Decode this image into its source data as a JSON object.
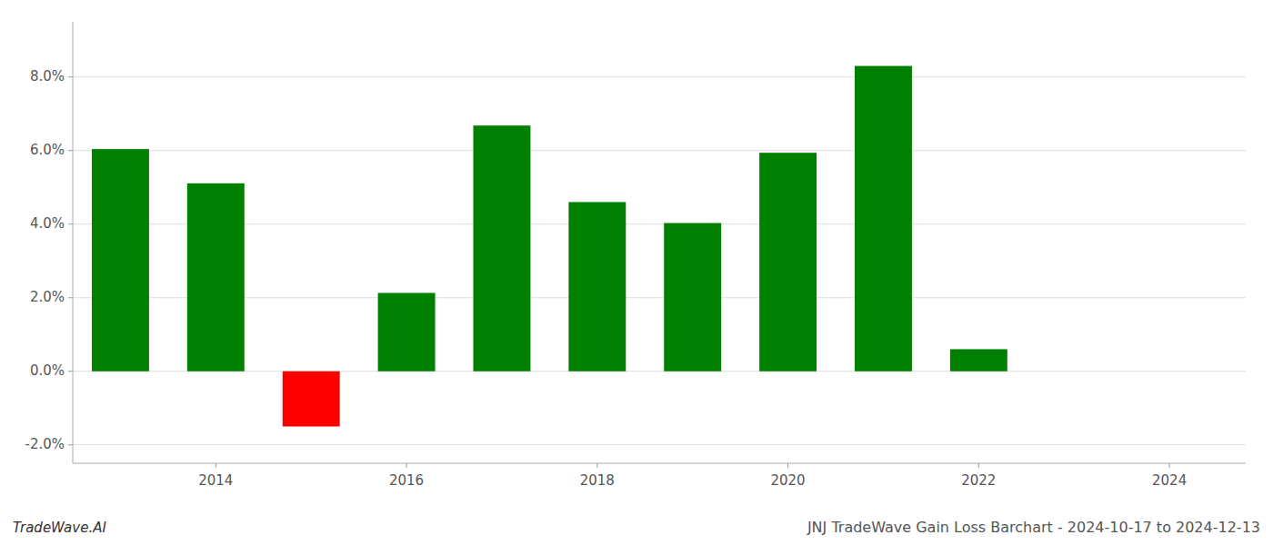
{
  "chart_data": {
    "type": "bar",
    "title": "JNJ TradeWave Gain Loss Barchart - 2024-10-17 to 2024-12-13",
    "annotations": [
      "TradeWave.AI"
    ],
    "x": [
      2013,
      2014,
      2015,
      2016,
      2017,
      2018,
      2019,
      2020,
      2021,
      2022,
      2023
    ],
    "values": [
      0.0604,
      0.0511,
      -0.015,
      0.0213,
      0.0668,
      0.046,
      0.0403,
      0.0594,
      0.083,
      0.006,
      0.0
    ],
    "colors": [
      "#008000",
      "#008000",
      "#ff0000",
      "#008000",
      "#008000",
      "#008000",
      "#008000",
      "#008000",
      "#008000",
      "#008000",
      "#008000"
    ],
    "xlim": [
      2012.5,
      2024.8
    ],
    "xticks": [
      2014,
      2016,
      2018,
      2020,
      2022,
      2024
    ],
    "ylim": [
      -0.025,
      0.095
    ],
    "yticks": [
      {
        "value": -0.02,
        "label": "-2.0%"
      },
      {
        "value": 0.0,
        "label": "0.0%"
      },
      {
        "value": 0.02,
        "label": "2.0%"
      },
      {
        "value": 0.04,
        "label": "4.0%"
      },
      {
        "value": 0.06,
        "label": "6.0%"
      },
      {
        "value": 0.08,
        "label": "8.0%"
      }
    ],
    "grid": true
  }
}
